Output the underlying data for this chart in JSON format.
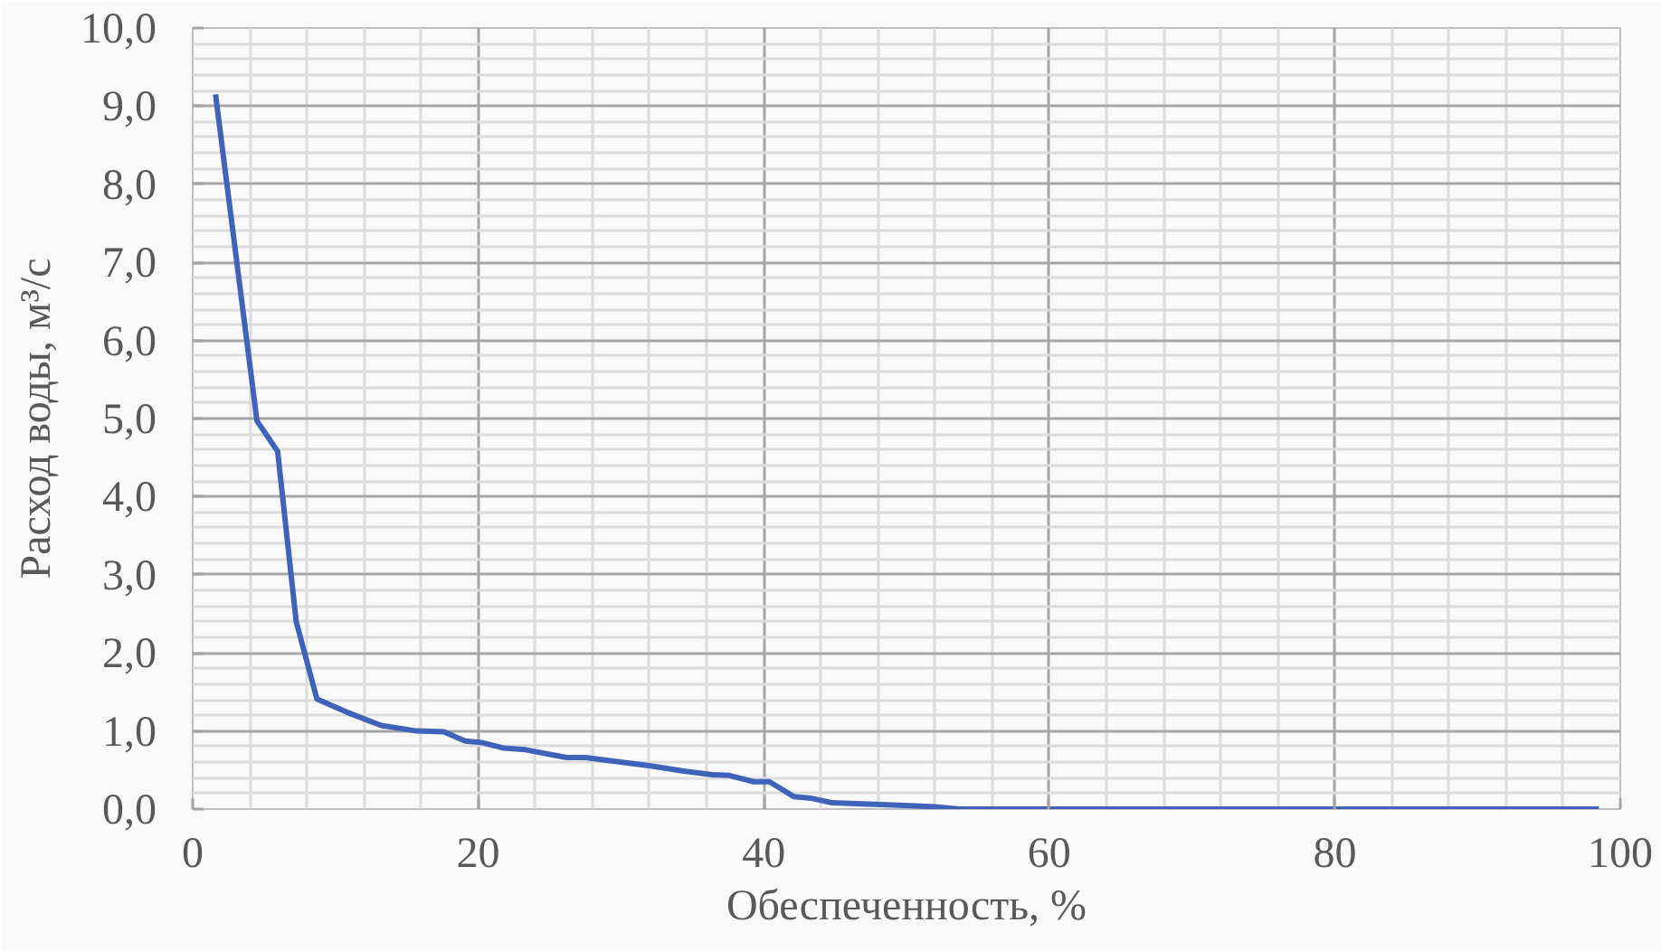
{
  "chart_data": {
    "type": "line",
    "xlabel": "Обеспеченность, %",
    "ylabel": "Расход воды, м³/с",
    "x": [
      1.6,
      4.5,
      5.95,
      7.25,
      8.7,
      10.8,
      13.2,
      15.7,
      17.6,
      19.1,
      20.3,
      21.8,
      23.3,
      26.2,
      27.5,
      32.2,
      34.3,
      36.4,
      37.6,
      39.3,
      40.4,
      42.1,
      43.3,
      44.8,
      47.8,
      52.0,
      53.7,
      98.5
    ],
    "values": [
      9.15,
      4.97,
      4.58,
      2.4,
      1.41,
      1.24,
      1.07,
      1.0,
      0.99,
      0.87,
      0.85,
      0.78,
      0.76,
      0.66,
      0.66,
      0.55,
      0.49,
      0.44,
      0.43,
      0.35,
      0.35,
      0.16,
      0.14,
      0.08,
      0.06,
      0.03,
      0.0,
      0.0
    ],
    "color": "#3f63b8",
    "line_style": "solid",
    "xlim": [
      0,
      100
    ],
    "xticks": [
      0,
      20,
      40,
      60,
      80,
      100
    ],
    "ylim": [
      0,
      10
    ],
    "yticks": [
      {
        "value": 0,
        "label": "0,0"
      },
      {
        "value": 1,
        "label": "1,0"
      },
      {
        "value": 2,
        "label": "2,0"
      },
      {
        "value": 3,
        "label": "3,0"
      },
      {
        "value": 4,
        "label": "4,0"
      },
      {
        "value": 5,
        "label": "5,0"
      },
      {
        "value": 6,
        "label": "6,0"
      },
      {
        "value": 7,
        "label": "7,0"
      },
      {
        "value": 8,
        "label": "8,0"
      },
      {
        "value": 9,
        "label": "9,0"
      },
      {
        "value": 10,
        "label": "10,0"
      }
    ],
    "grid": true
  }
}
